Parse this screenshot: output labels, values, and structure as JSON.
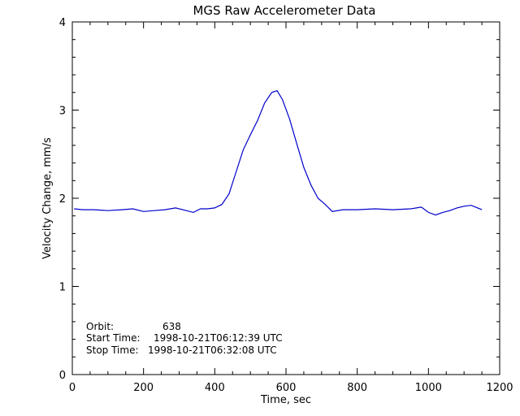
{
  "chart_data": {
    "type": "line",
    "title": "MGS Raw Accelerometer Data",
    "xlabel": "Time, sec",
    "ylabel": "Velocity Change, mm/s",
    "xlim": [
      0,
      1200
    ],
    "ylim": [
      0,
      4
    ],
    "xticks": [
      "0",
      "200",
      "400",
      "600",
      "800",
      "1000",
      "1200"
    ],
    "yticks": [
      "0",
      "1",
      "2",
      "3",
      "4"
    ],
    "grid": false,
    "colors": {
      "line": "#0000cc",
      "axes": "#000000"
    },
    "annotations": {
      "orbit_label": "Orbit:",
      "orbit_value": "638",
      "start_label": "Start Time:",
      "start_value": "1998-10-21T06:12:39 UTC",
      "stop_label": "Stop Time:",
      "stop_value": "1998-10-21T06:32:08 UTC"
    },
    "series": [
      {
        "x": [
          5,
          30,
          60,
          100,
          140,
          170,
          200,
          230,
          260,
          290,
          320,
          340,
          360,
          380,
          400,
          420,
          440,
          460,
          480,
          500,
          520,
          540,
          560,
          575,
          590,
          610,
          630,
          650,
          670,
          690,
          710,
          730,
          760,
          800,
          850,
          900,
          950,
          980,
          1000,
          1020,
          1040,
          1060,
          1080,
          1100,
          1120,
          1150
        ],
        "y": [
          1.88,
          1.87,
          1.87,
          1.86,
          1.87,
          1.88,
          1.85,
          1.86,
          1.87,
          1.89,
          1.86,
          1.84,
          1.88,
          1.88,
          1.89,
          1.93,
          2.05,
          2.3,
          2.55,
          2.72,
          2.88,
          3.08,
          3.2,
          3.22,
          3.12,
          2.9,
          2.62,
          2.35,
          2.15,
          2.0,
          1.93,
          1.85,
          1.87,
          1.87,
          1.88,
          1.87,
          1.88,
          1.9,
          1.84,
          1.81,
          1.84,
          1.86,
          1.89,
          1.91,
          1.92,
          1.87
        ]
      }
    ]
  }
}
